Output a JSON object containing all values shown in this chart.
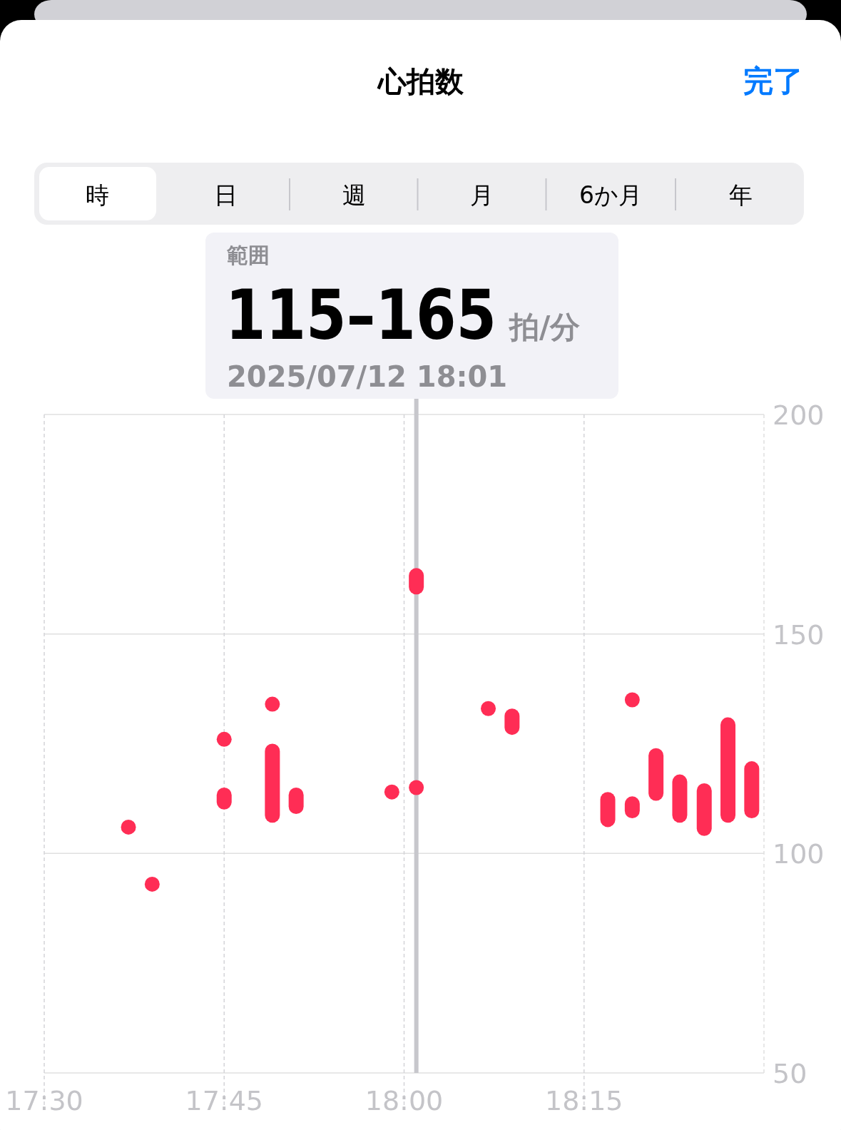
{
  "chart_data": {
    "type": "bar",
    "title": "心拍数",
    "annotations": [
      "完了",
      "時",
      "日",
      "週",
      "月",
      "6か月",
      "年",
      "範囲",
      "115–165",
      "拍/分",
      "2025/07/12 18:01"
    ],
    "series": [
      {
        "color": "#ff2d55",
        "x": [
          17.75,
          17.817,
          17.85,
          18.017,
          18.15,
          18.283,
          18.317,
          18.35,
          18.383,
          18.417,
          18.45,
          18.483
        ],
        "base": [
          110,
          107,
          109,
          159,
          127,
          106,
          108,
          112,
          107,
          104,
          107,
          108
        ],
        "values": [
          5,
          18,
          6,
          6,
          6,
          8,
          5,
          12,
          11,
          12,
          24,
          13
        ]
      },
      {
        "type": "scatter",
        "color": "#ff2d55",
        "x": [
          17.617,
          17.65,
          17.75,
          17.817,
          17.983,
          18.017,
          18.117,
          18.317
        ],
        "values": [
          106,
          93,
          126,
          134,
          114,
          115,
          133,
          135
        ]
      }
    ],
    "xlim": [
      17.5,
      18.5
    ],
    "xticks": [
      {
        "value": 17.5,
        "label": "17:30"
      },
      {
        "value": 17.75,
        "label": "17:45"
      },
      {
        "value": 18,
        "label": "18:00"
      },
      {
        "value": 18.25,
        "label": "18:15"
      }
    ],
    "ylim": [
      50,
      200
    ],
    "yticks": [
      50,
      100,
      150,
      200
    ],
    "grid": true,
    "ref_lines": [
      {
        "axis": "x",
        "value": 18.017,
        "color": "#c7c7cc"
      }
    ]
  }
}
